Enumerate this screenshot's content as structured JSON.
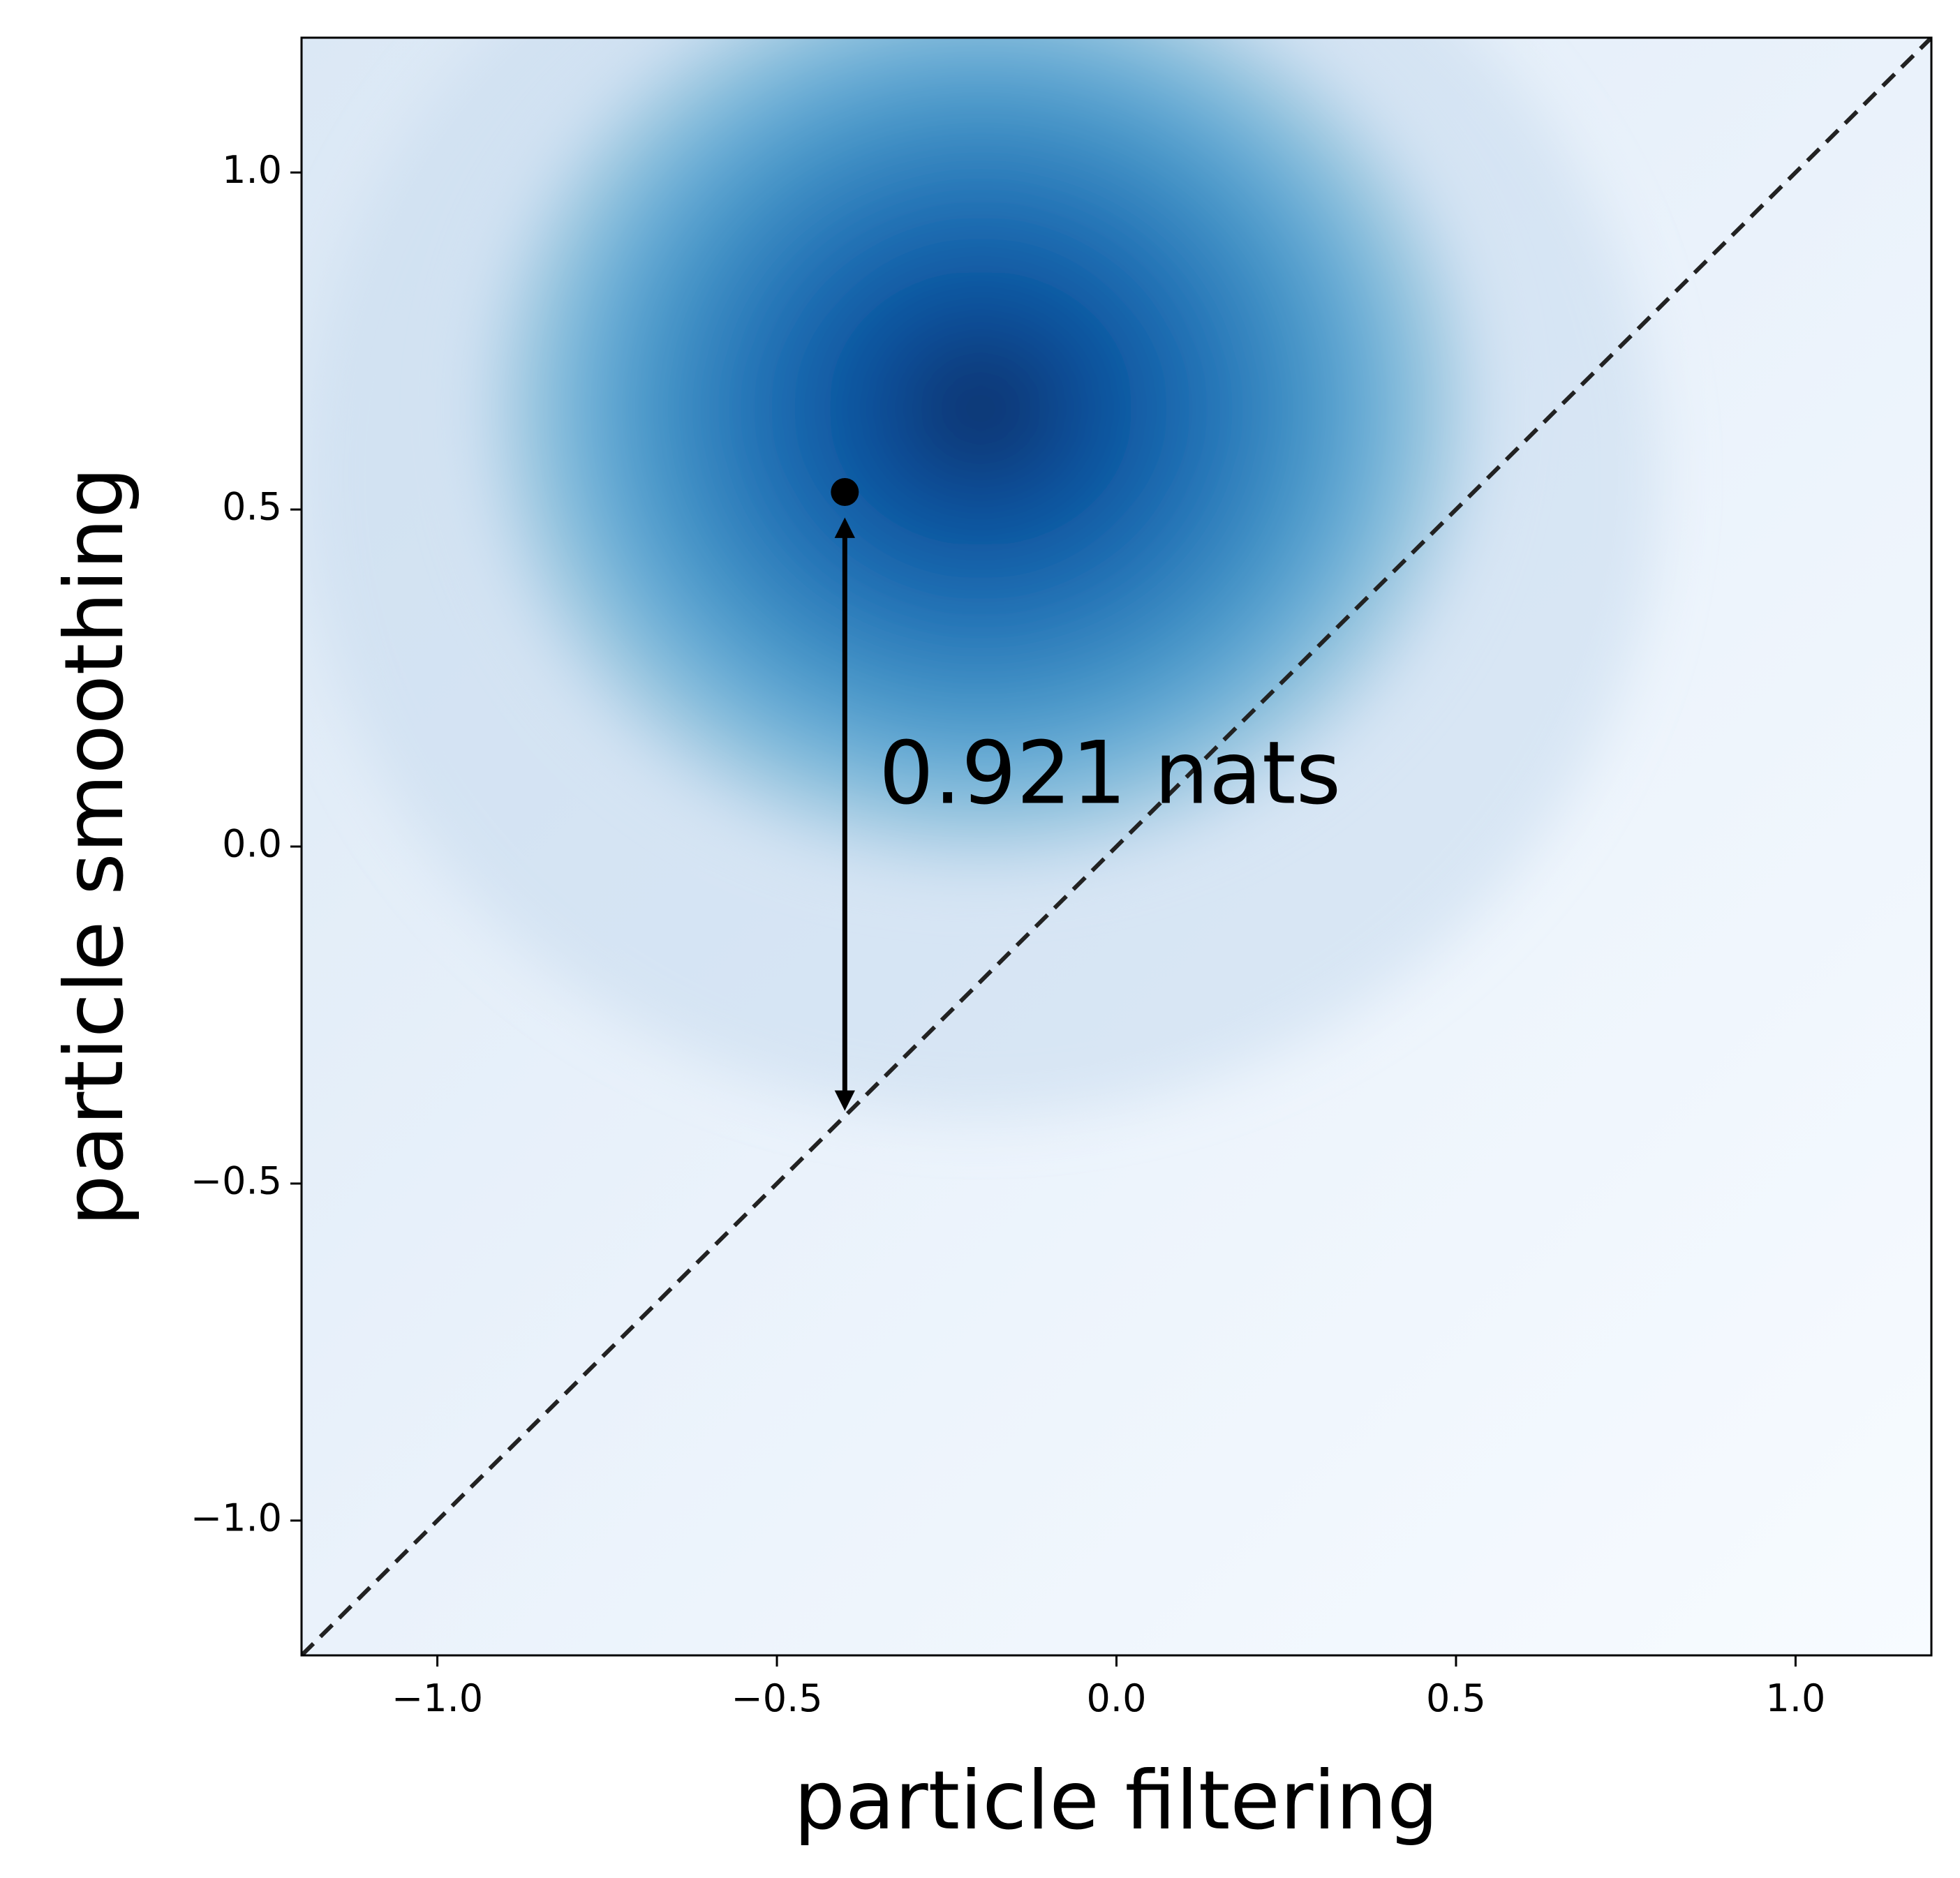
{
  "chart_data": {
    "type": "heatmap",
    "title": "",
    "xlabel": "particle filtering",
    "ylabel": "particle smoothing",
    "xlim": [
      -1.2,
      1.2
    ],
    "ylim": [
      -1.2,
      1.2
    ],
    "xticks": [
      -1.0,
      -0.5,
      0.0,
      0.5,
      1.0
    ],
    "xtick_labels": [
      "−1.0",
      "−0.5",
      "0.0",
      "0.5",
      "1.0"
    ],
    "yticks": [
      -1.0,
      -0.5,
      0.0,
      0.5,
      1.0
    ],
    "ytick_labels": [
      "−1.0",
      "−0.5",
      "0.0",
      "0.5",
      "1.0"
    ],
    "colormap": "Blues",
    "colormap_stops": [
      "#f7fbff",
      "#deebf7",
      "#c6dbef",
      "#9ecae1",
      "#6baed6",
      "#4292c6",
      "#2171b5",
      "#08519c",
      "#08306b"
    ],
    "density_mode": {
      "x": -0.2,
      "y": 0.65
    },
    "reference_line": {
      "type": "y=x",
      "style": "dashed",
      "color": "#222222"
    },
    "marked_point": {
      "x": -0.4,
      "y": 0.526
    },
    "arrow": {
      "x": -0.4,
      "y_from": 0.526,
      "y_to": -0.4,
      "double_headed": true
    },
    "annotation": {
      "text": "0.921 nats",
      "x": -0.35,
      "y": 0.1
    },
    "grid": false,
    "legend": "none"
  }
}
